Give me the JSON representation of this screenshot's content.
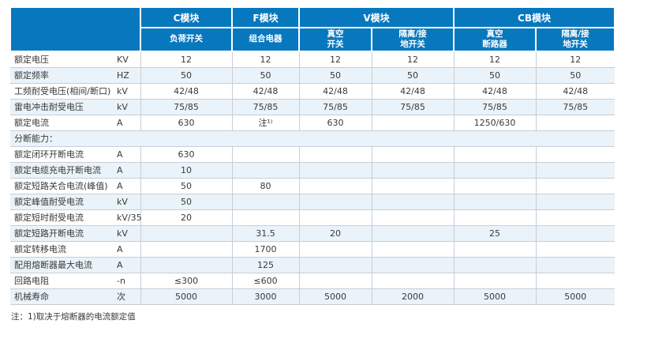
{
  "colors": {
    "header_bg": "#0878be",
    "header_text": "#ffffff",
    "row_alt_bg": "#e9f3f9",
    "grid_line": "#c9ced3",
    "body_text": "#3a3a3a"
  },
  "table": {
    "corner_label": "",
    "column_groups": [
      {
        "label": "C模块",
        "span": 1
      },
      {
        "label": "F模块",
        "span": 1
      },
      {
        "label": "V模块",
        "span": 2
      },
      {
        "label": "CB模块",
        "span": 2
      }
    ],
    "column_subheaders": [
      "负荷开关",
      "组合电器",
      "真空\n开关",
      "隔离/接\n地开关",
      "真空\n断路器",
      "隔离/接\n地开关"
    ],
    "rows": [
      {
        "label": "额定电压",
        "unit": "KV",
        "values": [
          "12",
          "12",
          "12",
          "12",
          "12",
          "12"
        ]
      },
      {
        "label": "额定频率",
        "unit": "HZ",
        "values": [
          "50",
          "50",
          "50",
          "50",
          "50",
          "50"
        ]
      },
      {
        "label": "工频耐受电压(相间/断口)",
        "unit": "kV",
        "values": [
          "42/48",
          "42/48",
          "42/48",
          "42/48",
          "42/48",
          "42/48"
        ]
      },
      {
        "label": "雷电冲击耐受电压",
        "unit": "kV",
        "values": [
          "75/85",
          "75/85",
          "75/85",
          "75/85",
          "75/85",
          "75/85"
        ]
      },
      {
        "label": "额定电流",
        "unit": "A",
        "values": [
          "630",
          "注¹⁾",
          "630",
          "",
          "1250/630",
          ""
        ]
      },
      {
        "label": "分断能力：",
        "section": true
      },
      {
        "label": "额定闭环开断电流",
        "unit": "A",
        "values": [
          "630",
          "",
          "",
          "",
          "",
          ""
        ]
      },
      {
        "label": "额定电缆充电开断电流",
        "unit": "A",
        "values": [
          "10",
          "",
          "",
          "",
          "",
          ""
        ]
      },
      {
        "label": "额定短路关合电流(峰值)",
        "unit": "A",
        "values": [
          "50",
          "80",
          "",
          "",
          "",
          ""
        ]
      },
      {
        "label": "额定峰值耐受电流",
        "unit": "kV",
        "values": [
          "50",
          "",
          "",
          "",
          "",
          ""
        ]
      },
      {
        "label": "额定短时耐受电流",
        "unit": "kV/35",
        "values": [
          "20",
          "",
          "",
          "",
          "",
          ""
        ]
      },
      {
        "label": "额定短路开断电流",
        "unit": "kV",
        "values": [
          "",
          "31.5",
          "20",
          "",
          "25",
          ""
        ]
      },
      {
        "label": "额定转移电流",
        "unit": "A",
        "values": [
          "",
          "1700",
          "",
          "",
          "",
          ""
        ]
      },
      {
        "label": "配用熔断器最大电流",
        "unit": "A",
        "values": [
          "",
          "125",
          "",
          "",
          "",
          ""
        ]
      },
      {
        "label": "回路电阻",
        "unit": "-n",
        "values": [
          "≤300",
          "≤600",
          "",
          "",
          "",
          ""
        ]
      },
      {
        "label": "机械寿命",
        "unit": "次",
        "values": [
          "5000",
          "3000",
          "5000",
          "2000",
          "5000",
          "5000"
        ]
      }
    ],
    "footnote": "注：1)取决于熔断器的电流额定值"
  }
}
